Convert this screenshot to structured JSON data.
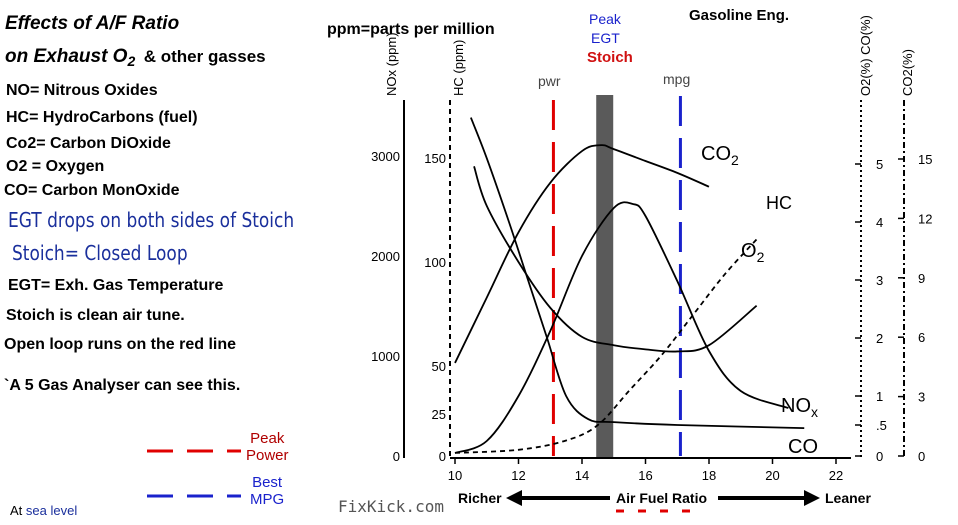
{
  "header": {
    "title_line1": "Effects of A/F Ratio",
    "title_line2_main": "on Exhaust O",
    "title_line2_sub": "2",
    "title_line2_rest": "& other gasses",
    "ppm_note": "ppm=parts per million",
    "engine_label": "Gasoline Eng."
  },
  "notes": {
    "no": "NO= Nitrous Oxides",
    "hc": "HC= HydroCarbons (fuel)",
    "co2": "Co2= Carbon DiOxide",
    "o2": "O2 = Oxygen",
    "co": "CO= Carbon MonOxide",
    "egt_drops": "EGT drops on both sides of Stoich",
    "stoich_closed": "Stoich= Closed Loop",
    "egt_def": "EGT= Exh. Gas Temperature",
    "stoich_clean": "Stoich is clean air tune.",
    "open_loop": "Open loop runs on the red line",
    "analyser": "`A 5 Gas Analyser can see this."
  },
  "legend": {
    "peak_power_line1": "Peak",
    "peak_power_line2": "Power",
    "best_mpg_line1": "Best",
    "best_mpg_line2": "MPG",
    "sea_level_prefix": "At",
    "sea_level": "sea level",
    "peak_color": "#e00000",
    "mpg_color": "#1a22cc"
  },
  "watermark": "FixKick.com",
  "chart_data": {
    "type": "line",
    "xlabel": "Air Fuel Ratio",
    "x_left_label": "Richer",
    "x_right_label": "Leaner",
    "xlim": [
      10,
      22
    ],
    "x_ticks": [
      "10",
      "12",
      "14",
      "16",
      "18",
      "20",
      "22"
    ],
    "axes": {
      "nox": {
        "label": "NOx (ppm)",
        "ticks": [
          "0",
          "1000",
          "2000",
          "3000"
        ]
      },
      "hc": {
        "label": "HC (ppm)",
        "ticks": [
          "0",
          "25",
          "50",
          "100",
          "150"
        ]
      },
      "o2_co": {
        "label": "O2(%) CO(%)",
        "ticks": [
          "0",
          ".5",
          "1",
          "2",
          "3",
          "4",
          "5"
        ]
      },
      "co2": {
        "label": "CO2(%)",
        "ticks": [
          "0",
          "3",
          "6",
          "9",
          "12",
          "15"
        ]
      }
    },
    "markers": {
      "pwr": {
        "label": "pwr",
        "x": 13.1
      },
      "stoich": {
        "label": "Stoich",
        "peak_label": "Peak",
        "egt_label": "EGT",
        "x": 14.7
      },
      "mpg": {
        "label": "mpg",
        "x": 17.1
      }
    },
    "series": [
      {
        "name": "CO2",
        "label": "CO",
        "label_sub": "2",
        "x": [
          10,
          11,
          12,
          13,
          14,
          14.6,
          15,
          16,
          17,
          18
        ],
        "y": [
          4.7,
          8,
          11.3,
          13.8,
          15.4,
          15.7,
          15.5,
          14.9,
          14.3,
          13.6
        ]
      },
      {
        "name": "HC",
        "label": "HC",
        "x": [
          10.6,
          11,
          12,
          13,
          14,
          15,
          16,
          17,
          18,
          19.5
        ],
        "y": [
          146,
          127,
          100,
          78,
          64,
          60,
          58,
          57,
          60,
          79
        ]
      },
      {
        "name": "O2",
        "label": "O",
        "label_sub": "2",
        "x": [
          10,
          12,
          13.5,
          14.5,
          15.5,
          16.5,
          17.5,
          18.5,
          19.5
        ],
        "y": [
          0.05,
          0.1,
          0.25,
          0.5,
          1.1,
          1.7,
          2.4,
          3.1,
          3.7
        ]
      },
      {
        "name": "CO",
        "label": "CO",
        "x": [
          10.5,
          11,
          11.7,
          12.3,
          12.9,
          13.5,
          14.2,
          15,
          17,
          21
        ],
        "y": [
          5.8,
          5.1,
          4,
          3,
          2,
          1,
          0.6,
          0.55,
          0.5,
          0.45
        ]
      },
      {
        "name": "NOx",
        "label": "NO",
        "label_sub": "x",
        "x": [
          10,
          11,
          12,
          13,
          14,
          15,
          15.6,
          16,
          17,
          18,
          19,
          20.5
        ],
        "y": [
          30,
          150,
          600,
          1250,
          2000,
          2480,
          2520,
          2400,
          1750,
          1050,
          650,
          480
        ]
      }
    ]
  }
}
